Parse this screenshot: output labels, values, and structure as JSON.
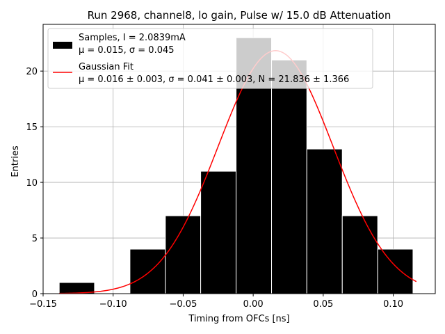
{
  "chart_data": {
    "type": "bar",
    "title": "Run 2968, channel8, lo gain, Pulse w/ 15.0 dB Attenuation",
    "xlabel": "Timing from OFCs [ns]",
    "ylabel": "Entries",
    "xlim": [
      -0.15,
      0.13
    ],
    "ylim": [
      0,
      24.2
    ],
    "grid": true,
    "x_ticks": [
      {
        "value": -0.15,
        "label": "−0.15"
      },
      {
        "value": -0.1,
        "label": "−0.10"
      },
      {
        "value": -0.05,
        "label": "−0.05"
      },
      {
        "value": 0.0,
        "label": "0.00"
      },
      {
        "value": 0.05,
        "label": "0.05"
      },
      {
        "value": 0.1,
        "label": "0.10"
      }
    ],
    "y_ticks": [
      {
        "value": 0,
        "label": "0"
      },
      {
        "value": 5,
        "label": "5"
      },
      {
        "value": 10,
        "label": "10"
      },
      {
        "value": 15,
        "label": "15"
      },
      {
        "value": 20,
        "label": "20"
      }
    ],
    "bin_edges": [
      -0.1385,
      -0.1133,
      -0.088,
      -0.0627,
      -0.0375,
      -0.0122,
      0.0131,
      0.0383,
      0.0636,
      0.0889,
      0.1141
    ],
    "counts": [
      1,
      0,
      4,
      7,
      11,
      23,
      21,
      13,
      7,
      4
    ],
    "fit": {
      "name": "Gaussian Fit",
      "mu": 0.016,
      "sigma": 0.041,
      "N": 21.836,
      "x_range": [
        -0.1385,
        0.1165
      ],
      "color": "#ff0000"
    },
    "legend": {
      "placement": "upper-left",
      "entries": [
        {
          "line1": "Samples, I = 2.0839mA",
          "line2": "μ = 0.015, σ = 0.045",
          "color": "#000000"
        },
        {
          "line1": "Gaussian Fit",
          "line2": "μ = 0.016 ± 0.003, σ = 0.041 ± 0.003, N = 21.836 ± 1.366",
          "color": "#ff0000"
        }
      ]
    },
    "colors": {
      "bar_fill": "#000000",
      "bar_edge": "#ffffff",
      "grid": "#b0b0b0",
      "fit": "#ff0000"
    }
  }
}
